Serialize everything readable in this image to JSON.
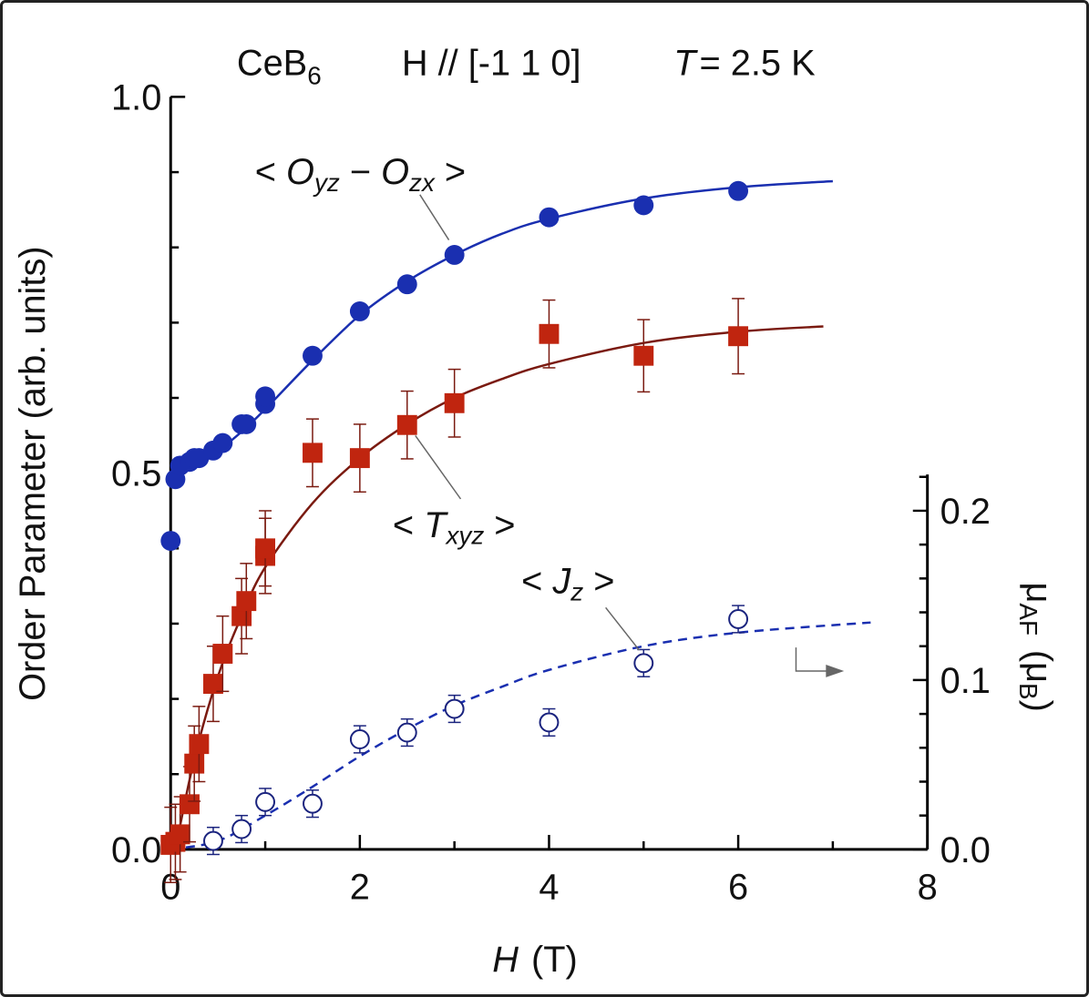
{
  "chart_data": {
    "type": "scatter",
    "title": {
      "compound": "CeB",
      "compound_sub": "6",
      "field": "H // [-1 1 0]",
      "temp_var": "T",
      "temp_value": "= 2.5 K"
    },
    "xlabel": {
      "var": "H",
      "unit": "(T)"
    },
    "ylabel": "Order Parameter  (arb. units)",
    "ylabel_right": {
      "var": "μ",
      "sub": "AF",
      "unit_open": "(μ",
      "unit_sub": "B",
      "unit_close": ")"
    },
    "xlim": [
      0,
      8
    ],
    "ylim": [
      0,
      1.0
    ],
    "ylim_right": [
      0,
      0.4444
    ],
    "x_ticks": [
      "0",
      "2",
      "4",
      "6",
      "8"
    ],
    "y_ticks": [
      "0.0",
      "0.5",
      "1.0"
    ],
    "y_right_ticks": [
      "0.0",
      "0.1",
      "0.2"
    ],
    "grid": false,
    "colors": {
      "blue": "#1a2fb0",
      "red": "#c0250f",
      "red_line": "#7a1a10",
      "navy": "#1a237e",
      "axis": "#000000"
    },
    "series": [
      {
        "name": "< Oyz − Ozx >",
        "label": {
          "open": "< ",
          "v1": "O",
          "s1": "yz",
          "mid": " − ",
          "v2": "O",
          "s2": "zx",
          "close": " >"
        },
        "marker": "filled-circle",
        "axis": "left",
        "x": [
          0.0,
          0.05,
          0.1,
          0.2,
          0.25,
          0.3,
          0.45,
          0.55,
          0.75,
          0.8,
          1.0,
          1.0,
          1.5,
          2.0,
          2.5,
          3.0,
          4.0,
          5.0,
          6.0
        ],
        "y": [
          0.41,
          0.492,
          0.51,
          0.515,
          0.52,
          0.52,
          0.53,
          0.54,
          0.565,
          0.565,
          0.592,
          0.602,
          0.656,
          0.715,
          0.751,
          0.79,
          0.84,
          0.856,
          0.875
        ],
        "fit": {
          "style": "solid",
          "x": [
            0,
            0.25,
            0.5,
            0.75,
            1,
            1.5,
            2,
            2.5,
            3,
            3.5,
            4,
            5,
            6,
            7
          ],
          "y": [
            0.5,
            0.512,
            0.53,
            0.555,
            0.585,
            0.65,
            0.71,
            0.755,
            0.79,
            0.818,
            0.838,
            0.865,
            0.88,
            0.888
          ]
        }
      },
      {
        "name": "< Txyz >",
        "label": {
          "open": "< ",
          "v1": "T",
          "s1": "xyz",
          "close": " >"
        },
        "marker": "filled-square",
        "axis": "left",
        "x": [
          0.0,
          0.05,
          0.1,
          0.2,
          0.25,
          0.3,
          0.45,
          0.55,
          0.75,
          0.8,
          1.0,
          1.0,
          1.5,
          2.0,
          2.5,
          3.0,
          4.0,
          5.0,
          6.0
        ],
        "y": [
          0.006,
          0.01,
          0.02,
          0.06,
          0.114,
          0.14,
          0.22,
          0.26,
          0.31,
          0.33,
          0.39,
          0.4,
          0.527,
          0.52,
          0.564,
          0.593,
          0.685,
          0.656,
          0.682
        ],
        "err": [
          0.05,
          0.05,
          0.05,
          0.05,
          0.05,
          0.05,
          0.05,
          0.05,
          0.05,
          0.05,
          0.05,
          0.05,
          0.045,
          0.045,
          0.045,
          0.045,
          0.045,
          0.048,
          0.05
        ],
        "fit": {
          "style": "solid",
          "x": [
            0.05,
            0.25,
            0.5,
            0.75,
            1,
            1.5,
            2,
            2.5,
            3,
            3.5,
            4,
            5,
            6,
            6.9
          ],
          "y": [
            0,
            0.12,
            0.23,
            0.31,
            0.375,
            0.46,
            0.52,
            0.565,
            0.6,
            0.625,
            0.645,
            0.673,
            0.688,
            0.695
          ]
        }
      },
      {
        "name": "< Jz >",
        "label": {
          "open": "< ",
          "v1": "J",
          "s1": "z",
          "close": " >"
        },
        "marker": "open-circle",
        "axis": "right",
        "x": [
          0.45,
          0.75,
          1.0,
          1.5,
          2.0,
          2.5,
          3.0,
          4.0,
          5.0,
          6.0
        ],
        "y": [
          0.005,
          0.012,
          0.028,
          0.027,
          0.065,
          0.069,
          0.083,
          0.075,
          0.11,
          0.136
        ],
        "err": [
          0.008,
          0.008,
          0.008,
          0.008,
          0.008,
          0.008,
          0.008,
          0.008,
          0.008,
          0.008
        ],
        "fit": {
          "style": "dashed",
          "x": [
            0,
            0.5,
            1,
            1.5,
            2,
            2.5,
            3,
            3.5,
            4,
            5,
            6,
            7.4
          ],
          "y": [
            0,
            0.005,
            0.02,
            0.037,
            0.055,
            0.071,
            0.085,
            0.096,
            0.106,
            0.12,
            0.128,
            0.134
          ]
        }
      }
    ]
  }
}
